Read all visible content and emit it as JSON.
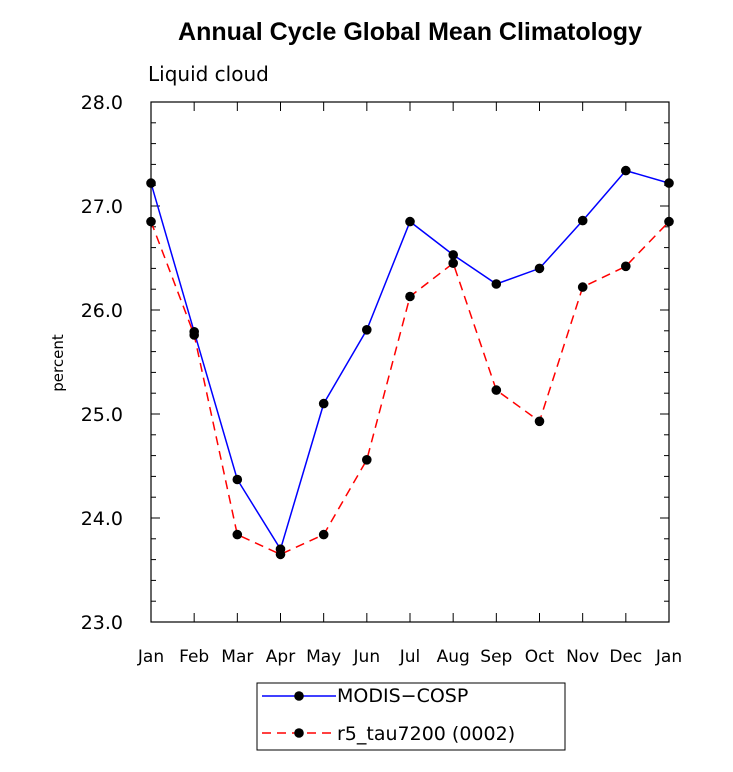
{
  "chart_data": {
    "type": "line",
    "title": "Annual Cycle Global Mean Climatology",
    "subtitle": "Liquid cloud",
    "xlabel": "",
    "ylabel": "percent",
    "categories": [
      "Jan",
      "Feb",
      "Mar",
      "Apr",
      "May",
      "Jun",
      "Jul",
      "Aug",
      "Sep",
      "Oct",
      "Nov",
      "Dec",
      "Jan"
    ],
    "ylim": [
      23.0,
      28.0
    ],
    "yticks": [
      "23.0",
      "24.0",
      "25.0",
      "26.0",
      "27.0",
      "28.0"
    ],
    "series": [
      {
        "name": "MODIS−COSP",
        "color": "#0000ff",
        "style": "solid",
        "marker": "dot",
        "values": [
          27.22,
          25.79,
          24.37,
          23.7,
          25.1,
          25.81,
          26.85,
          26.53,
          26.25,
          26.4,
          26.86,
          27.34,
          27.22
        ]
      },
      {
        "name": "r5_tau7200 (0002)",
        "color": "#ff0000",
        "style": "dashed",
        "marker": "dot",
        "values": [
          26.85,
          25.76,
          23.84,
          23.65,
          23.84,
          24.56,
          26.13,
          26.45,
          25.23,
          24.93,
          26.22,
          26.42,
          26.85
        ]
      }
    ],
    "legend_position": "bottom-center"
  }
}
